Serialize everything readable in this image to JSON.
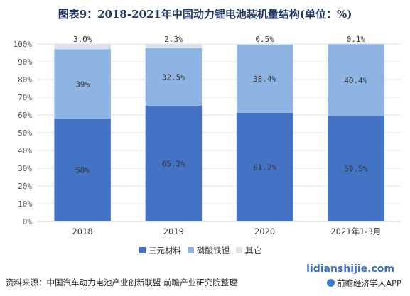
{
  "chart_data": {
    "type": "bar",
    "stacked": true,
    "title": "图表9：2018-2021年中国动力锂电池装机量结构(单位：%)",
    "categories": [
      "2018",
      "2019",
      "2020",
      "2021年1-3月"
    ],
    "series": [
      {
        "name": "三元材料",
        "color": "#4472c4",
        "values": [
          58,
          65.2,
          61.2,
          59.5
        ],
        "labels": [
          "58%",
          "65.2%",
          "61.2%",
          "59.5%"
        ]
      },
      {
        "name": "磷酸铁锂",
        "color": "#8eb4e3",
        "values": [
          39,
          32.5,
          38.4,
          40.4
        ],
        "labels": [
          "39%",
          "32.5%",
          "38.4%",
          "40.4%"
        ]
      },
      {
        "name": "其它",
        "color": "#d9e3f0",
        "values": [
          3.0,
          2.3,
          0.5,
          0.1
        ],
        "labels": [
          "3.0%",
          "2.3%",
          "0.5%",
          "0.1%"
        ]
      }
    ],
    "ylim": [
      0,
      100
    ],
    "yticks": [
      "0%",
      "10%",
      "20%",
      "30%",
      "40%",
      "50%",
      "60%",
      "70%",
      "80%",
      "90%",
      "100%"
    ],
    "grid": true,
    "legend": "bottom"
  },
  "footer": {
    "source": "资料来源：中国汽车动力电池产业创新联盟 前瞻产业研究院整理",
    "brand_url": "lidianshijie.com",
    "brand_app": "前瞻经济学人APP"
  }
}
